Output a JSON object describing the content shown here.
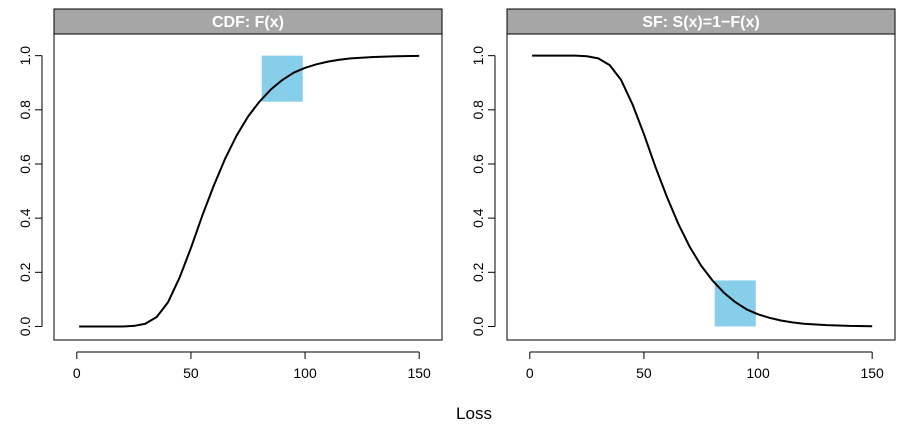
{
  "xlabel": "Loss",
  "colors": {
    "strip": "#a6a6a6",
    "highlight": "#87ceeb",
    "curve": "#000000",
    "frame": "#000000"
  },
  "chart_data": [
    {
      "type": "line",
      "title": "CDF: F(x)",
      "xlabel": "Loss",
      "ylabel": "",
      "xlim": [
        -10,
        160
      ],
      "ylim": [
        -0.05,
        1.08
      ],
      "x_ticks": [
        0,
        50,
        100,
        150
      ],
      "x_tick_labels": [
        "0",
        "50",
        "100",
        "150"
      ],
      "y_ticks": [
        0.0,
        0.2,
        0.4,
        0.6,
        0.8,
        1.0
      ],
      "y_tick_labels": [
        "0.0",
        "0.2",
        "0.4",
        "0.6",
        "0.8",
        "1.0"
      ],
      "grid": false,
      "series": [
        {
          "x": [
            1,
            10,
            20,
            25,
            30,
            35,
            40,
            45,
            50,
            55,
            60,
            65,
            70,
            75,
            80,
            85,
            90,
            95,
            100,
            105,
            110,
            115,
            120,
            130,
            140,
            150
          ],
          "values": [
            0.0,
            0.0,
            0.0,
            0.002,
            0.01,
            0.035,
            0.09,
            0.18,
            0.29,
            0.41,
            0.52,
            0.62,
            0.705,
            0.775,
            0.83,
            0.875,
            0.91,
            0.937,
            0.955,
            0.968,
            0.978,
            0.985,
            0.99,
            0.995,
            0.998,
            0.999
          ]
        }
      ],
      "highlight": {
        "x_from": 81,
        "x_to": 99,
        "y_from": 0.83,
        "y_to": 1.0
      }
    },
    {
      "type": "line",
      "title": "SF: S(x)=1−F(x)",
      "xlabel": "Loss",
      "ylabel": "",
      "xlim": [
        -10,
        160
      ],
      "ylim": [
        -0.05,
        1.08
      ],
      "x_ticks": [
        0,
        50,
        100,
        150
      ],
      "x_tick_labels": [
        "0",
        "50",
        "100",
        "150"
      ],
      "y_ticks": [
        0.0,
        0.2,
        0.4,
        0.6,
        0.8,
        1.0
      ],
      "y_tick_labels": [
        "0.0",
        "0.2",
        "0.4",
        "0.6",
        "0.8",
        "1.0"
      ],
      "grid": false,
      "series": [
        {
          "x": [
            1,
            10,
            20,
            25,
            30,
            35,
            40,
            45,
            50,
            55,
            60,
            65,
            70,
            75,
            80,
            85,
            90,
            95,
            100,
            105,
            110,
            115,
            120,
            130,
            140,
            150
          ],
          "values": [
            1.0,
            1.0,
            1.0,
            0.998,
            0.99,
            0.965,
            0.91,
            0.82,
            0.71,
            0.59,
            0.48,
            0.38,
            0.295,
            0.225,
            0.17,
            0.125,
            0.09,
            0.063,
            0.045,
            0.032,
            0.022,
            0.015,
            0.01,
            0.005,
            0.002,
            0.001
          ]
        }
      ],
      "highlight": {
        "x_from": 81,
        "x_to": 99,
        "y_from": 0.0,
        "y_to": 0.17
      }
    }
  ]
}
